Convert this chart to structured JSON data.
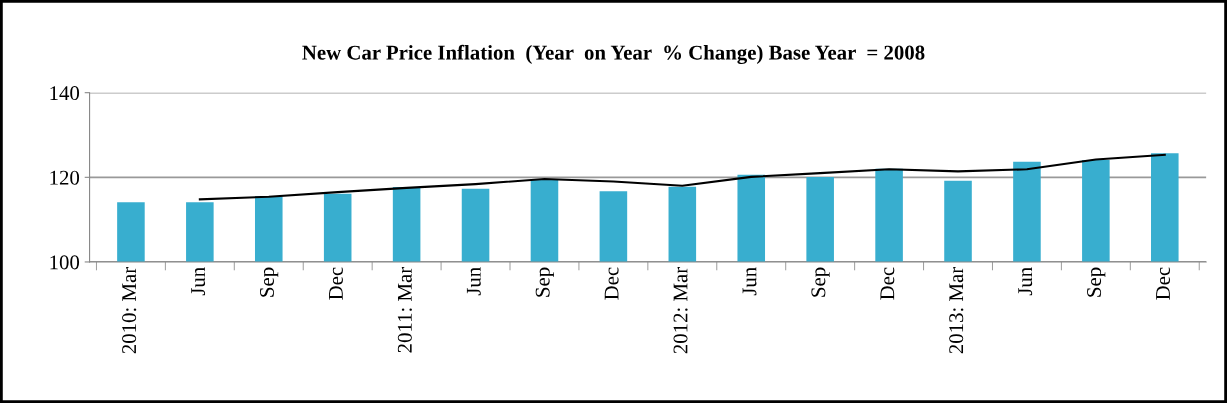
{
  "chart_data": {
    "type": "bar",
    "title": "New Car Price Inflation  (Year  on Year  % Change) Base Year  = 2008",
    "categories": [
      "2010: Mar",
      "Jun",
      "Sep",
      "Dec",
      "2011: Mar",
      "Jun",
      "Sep",
      "Dec",
      "2012: Mar",
      "Jun",
      "Sep",
      "Dec",
      "2013: Mar",
      "Jun",
      "Sep",
      "Dec"
    ],
    "series": [
      {
        "color": "#38aecf",
        "values": [
          114.1,
          114.1,
          115.5,
          116.1,
          117.7,
          117.3,
          119.6,
          116.7,
          117.8,
          120.6,
          120.1,
          122.0,
          119.2,
          123.7,
          124.1,
          125.7
        ]
      },
      {
        "type": "line",
        "color": "#000000",
        "values": [
          null,
          114.8,
          115.4,
          116.5,
          117.5,
          118.4,
          119.6,
          119.0,
          118.0,
          120.1,
          121.0,
          121.9,
          121.4,
          121.9,
          124.2,
          125.3
        ]
      }
    ],
    "ylim": [
      100,
      140
    ],
    "yticks": [
      100,
      120,
      140
    ],
    "grid": "y",
    "legend": false,
    "marker": "none",
    "line_style": "solid"
  }
}
